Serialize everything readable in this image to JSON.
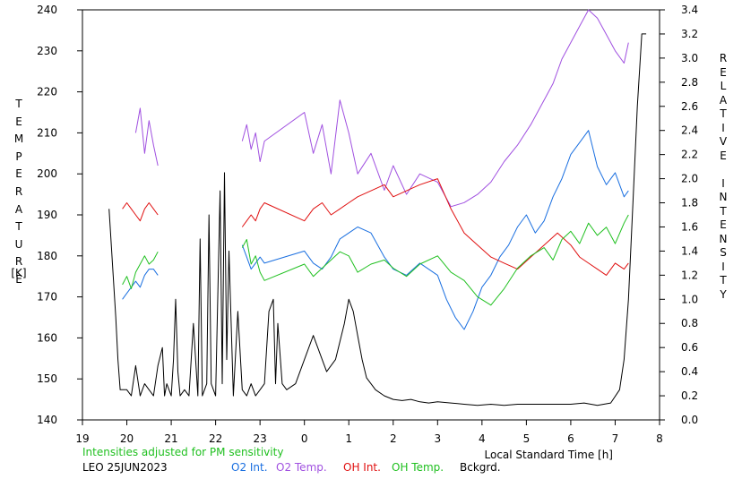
{
  "chart_data": {
    "type": "line",
    "left_axis": {
      "title_letters": [
        "T",
        "E",
        "M",
        "P",
        "E",
        "R",
        "A",
        "T",
        "U",
        "R",
        "E"
      ],
      "unit": "[K]",
      "range": [
        140,
        240
      ],
      "ticks": [
        "140",
        "150",
        "160",
        "170",
        "180",
        "190",
        "200",
        "210",
        "220",
        "230",
        "240"
      ]
    },
    "right_axis": {
      "title_letters": [
        "R",
        "E",
        "L",
        "A",
        "T",
        "I",
        "V",
        "E",
        "",
        "I",
        "N",
        "T",
        "E",
        "N",
        "S",
        "I",
        "T",
        "Y"
      ],
      "range": [
        0.0,
        3.4
      ],
      "ticks": [
        "0.0",
        "0.2",
        "0.4",
        "0.6",
        "0.8",
        "1.0",
        "1.2",
        "1.4",
        "1.6",
        "1.8",
        "2.0",
        "2.2",
        "2.4",
        "2.6",
        "2.8",
        "3.0",
        "3.2",
        "3.4"
      ]
    },
    "x_axis": {
      "label": "Local Standard Time [h]",
      "ticks": [
        "19",
        "20",
        "21",
        "22",
        "23",
        "0",
        "1",
        "2",
        "3",
        "4",
        "5",
        "6",
        "7",
        "8"
      ],
      "range": [
        19,
        32
      ]
    },
    "note": "Intensities adjusted for PM sensitivity",
    "station": "LEO 25JUN2023",
    "legend": [
      {
        "label": "O2 Int.",
        "color": "#1a6fe0"
      },
      {
        "label": "O2 Temp.",
        "color": "#a050e0"
      },
      {
        "label": "OH Int.",
        "color": "#e01010"
      },
      {
        "label": "OH Temp.",
        "color": "#20c020"
      },
      {
        "label": "Bckgrd.",
        "color": "#000000"
      }
    ],
    "colors": {
      "note": "#20c020",
      "axis": "#000000"
    },
    "series": [
      {
        "key": "bckgrd",
        "axis": "right",
        "color": "#000000",
        "x": [
          19.6,
          19.75,
          19.8,
          19.85,
          20.0,
          20.1,
          20.2,
          20.3,
          20.4,
          20.5,
          20.6,
          20.7,
          20.8,
          20.85,
          20.9,
          21.0,
          21.05,
          21.1,
          21.15,
          21.2,
          21.3,
          21.4,
          21.5,
          21.6,
          21.65,
          21.7,
          21.8,
          21.85,
          21.9,
          22.0,
          22.1,
          22.15,
          22.2,
          22.25,
          22.3,
          22.4,
          22.5,
          22.6,
          22.7,
          22.8,
          22.9,
          23.0,
          23.1,
          23.2,
          23.3,
          23.35,
          23.4,
          23.5,
          23.6,
          23.8,
          24.0,
          24.2,
          24.4,
          24.5,
          24.7,
          24.9,
          25.0,
          25.1,
          25.2,
          25.3,
          25.4,
          25.6,
          25.8,
          26.0,
          26.2,
          26.4,
          26.6,
          26.8,
          27.0,
          27.3,
          27.6,
          27.9,
          28.2,
          28.5,
          28.8,
          29.1,
          29.4,
          29.7,
          30.0,
          30.3,
          30.6,
          30.9,
          31.1,
          31.2,
          31.3,
          31.4,
          31.5,
          31.6,
          31.7
        ],
        "y": [
          1.75,
          0.85,
          0.5,
          0.25,
          0.25,
          0.2,
          0.45,
          0.2,
          0.3,
          0.25,
          0.2,
          0.45,
          0.6,
          0.2,
          0.3,
          0.2,
          0.5,
          1.0,
          0.4,
          0.2,
          0.25,
          0.2,
          0.8,
          0.2,
          1.5,
          0.2,
          0.3,
          1.7,
          0.3,
          0.2,
          1.9,
          0.3,
          2.05,
          0.5,
          1.4,
          0.2,
          0.9,
          0.25,
          0.2,
          0.3,
          0.2,
          0.25,
          0.3,
          0.9,
          1.0,
          0.3,
          0.8,
          0.3,
          0.25,
          0.3,
          0.5,
          0.7,
          0.5,
          0.4,
          0.5,
          0.8,
          1.0,
          0.9,
          0.7,
          0.5,
          0.35,
          0.25,
          0.2,
          0.17,
          0.16,
          0.17,
          0.15,
          0.14,
          0.15,
          0.14,
          0.13,
          0.12,
          0.13,
          0.12,
          0.13,
          0.13,
          0.13,
          0.13,
          0.13,
          0.14,
          0.12,
          0.14,
          0.25,
          0.5,
          1.0,
          1.8,
          2.6,
          3.2,
          3.2
        ]
      },
      {
        "key": "o2temp",
        "axis": "left",
        "color": "#a050e0",
        "x": [
          20.2,
          20.3,
          20.4,
          20.5,
          20.6,
          20.7,
          22.6,
          22.7,
          22.8,
          22.9,
          23.0,
          23.1,
          24.0,
          24.2,
          24.4,
          24.6,
          24.8,
          25.0,
          25.2,
          25.5,
          25.8,
          26.0,
          26.3,
          26.6,
          27.0,
          27.3,
          27.6,
          27.9,
          28.2,
          28.5,
          28.8,
          29.1,
          29.4,
          29.6,
          29.8,
          30.0,
          30.2,
          30.4,
          30.6,
          30.8,
          31.0,
          31.2,
          31.3
        ],
        "y": [
          210,
          216,
          205,
          213,
          207,
          202,
          208,
          212,
          206,
          210,
          203,
          208,
          215,
          205,
          212,
          200,
          218,
          210,
          200,
          205,
          196,
          202,
          195,
          200,
          198,
          192,
          193,
          195,
          198,
          203,
          207,
          212,
          218,
          222,
          228,
          232,
          236,
          240,
          238,
          234,
          230,
          227,
          232
        ]
      },
      {
        "key": "o2int",
        "axis": "right",
        "color": "#1a6fe0",
        "x": [
          19.9,
          20.0,
          20.1,
          20.2,
          20.3,
          20.4,
          20.5,
          20.6,
          20.7,
          22.6,
          22.7,
          22.8,
          22.9,
          23.0,
          23.1,
          24.0,
          24.2,
          24.4,
          24.6,
          24.8,
          25.0,
          25.2,
          25.5,
          25.8,
          26.0,
          26.3,
          26.6,
          27.0,
          27.2,
          27.4,
          27.6,
          27.8,
          28.0,
          28.2,
          28.4,
          28.6,
          28.8,
          29.0,
          29.2,
          29.4,
          29.6,
          29.8,
          30.0,
          30.2,
          30.4,
          30.6,
          30.8,
          31.0,
          31.2,
          31.3
        ],
        "y": [
          1.0,
          1.05,
          1.1,
          1.15,
          1.1,
          1.2,
          1.25,
          1.25,
          1.2,
          1.45,
          1.35,
          1.25,
          1.3,
          1.35,
          1.3,
          1.4,
          1.3,
          1.25,
          1.35,
          1.5,
          1.55,
          1.6,
          1.55,
          1.35,
          1.25,
          1.2,
          1.3,
          1.2,
          1.0,
          0.85,
          0.75,
          0.9,
          1.1,
          1.2,
          1.35,
          1.45,
          1.6,
          1.7,
          1.55,
          1.65,
          1.85,
          2.0,
          2.2,
          2.3,
          2.4,
          2.1,
          1.95,
          2.05,
          1.85,
          1.9
        ]
      },
      {
        "key": "ohint",
        "axis": "right",
        "color": "#e01010",
        "x": [
          19.9,
          20.0,
          20.1,
          20.2,
          20.3,
          20.4,
          20.5,
          20.6,
          20.7,
          22.6,
          22.7,
          22.8,
          22.9,
          23.0,
          23.1,
          24.0,
          24.2,
          24.4,
          24.6,
          24.8,
          25.0,
          25.2,
          25.5,
          25.8,
          26.0,
          26.3,
          26.6,
          27.0,
          27.3,
          27.6,
          27.9,
          28.2,
          28.5,
          28.8,
          29.1,
          29.4,
          29.7,
          30.0,
          30.2,
          30.4,
          30.6,
          30.8,
          31.0,
          31.2,
          31.3
        ],
        "y": [
          1.75,
          1.8,
          1.75,
          1.7,
          1.65,
          1.75,
          1.8,
          1.75,
          1.7,
          1.6,
          1.65,
          1.7,
          1.65,
          1.75,
          1.8,
          1.65,
          1.75,
          1.8,
          1.7,
          1.75,
          1.8,
          1.85,
          1.9,
          1.95,
          1.85,
          1.9,
          1.95,
          2.0,
          1.75,
          1.55,
          1.45,
          1.35,
          1.3,
          1.25,
          1.35,
          1.45,
          1.55,
          1.45,
          1.35,
          1.3,
          1.25,
          1.2,
          1.3,
          1.25,
          1.3
        ]
      },
      {
        "key": "ohtemp",
        "axis": "left",
        "color": "#20c020",
        "x": [
          19.9,
          20.0,
          20.1,
          20.2,
          20.3,
          20.4,
          20.5,
          20.6,
          20.7,
          22.6,
          22.7,
          22.8,
          22.9,
          23.0,
          23.1,
          24.0,
          24.2,
          24.4,
          24.6,
          24.8,
          25.0,
          25.2,
          25.5,
          25.8,
          26.0,
          26.3,
          26.6,
          27.0,
          27.3,
          27.6,
          27.9,
          28.2,
          28.5,
          28.8,
          29.1,
          29.4,
          29.6,
          29.8,
          30.0,
          30.2,
          30.4,
          30.6,
          30.8,
          31.0,
          31.2,
          31.3
        ],
        "y": [
          173,
          175,
          172,
          176,
          178,
          180,
          178,
          179,
          181,
          182,
          184,
          178,
          180,
          176,
          174,
          178,
          175,
          177,
          179,
          181,
          180,
          176,
          178,
          179,
          177,
          175,
          178,
          180,
          176,
          174,
          170,
          168,
          172,
          177,
          180,
          182,
          179,
          184,
          186,
          183,
          188,
          185,
          187,
          183,
          188,
          190
        ]
      }
    ]
  }
}
